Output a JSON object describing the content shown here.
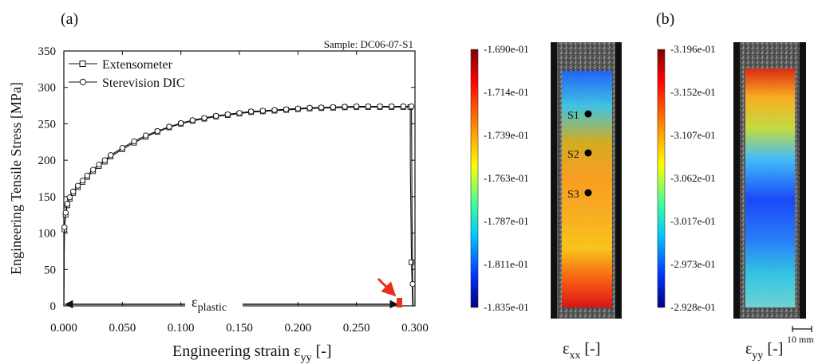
{
  "panels": {
    "a_label": "(a)",
    "b_label": "(b)"
  },
  "stress_strain": {
    "type": "line",
    "annotation": "Sample: DC06-07-S1",
    "xlabel_main": "Engineering strain ε",
    "xlabel_sub": "yy",
    "xlabel_tail": " [-]",
    "ylabel": "Engineering Tensile Stress [MPa]",
    "xlim": [
      0.0,
      0.3
    ],
    "ylim": [
      0,
      350
    ],
    "xticks": [
      0.0,
      0.05,
      0.1,
      0.15,
      0.2,
      0.25,
      0.3
    ],
    "xtick_labels": [
      "0.000",
      "0.050",
      "0.100",
      "0.150",
      "0.200",
      "0.250",
      "0.300"
    ],
    "yticks": [
      0,
      50,
      100,
      150,
      200,
      250,
      300,
      350
    ],
    "ytick_labels": [
      "0",
      "50",
      "100",
      "150",
      "200",
      "250",
      "300",
      "350"
    ],
    "legend_position": "top-left",
    "series": [
      {
        "name": "Extensometer",
        "marker": "square",
        "x": [
          0.0,
          0.0005,
          0.0015,
          0.003,
          0.005,
          0.008,
          0.012,
          0.016,
          0.02,
          0.025,
          0.03,
          0.035,
          0.04,
          0.05,
          0.06,
          0.07,
          0.08,
          0.09,
          0.1,
          0.11,
          0.12,
          0.13,
          0.14,
          0.15,
          0.16,
          0.17,
          0.18,
          0.19,
          0.2,
          0.21,
          0.22,
          0.23,
          0.24,
          0.25,
          0.26,
          0.27,
          0.28,
          0.29,
          0.296,
          0.296,
          0.297,
          0.298
        ],
        "y": [
          0,
          105,
          125,
          138,
          147,
          155,
          163,
          170,
          177,
          185,
          192,
          198,
          205,
          215,
          224,
          232,
          239,
          245,
          250,
          254,
          257,
          260,
          262,
          264,
          266,
          267,
          268,
          269,
          270,
          271,
          271.5,
          272,
          272.5,
          273,
          273,
          273,
          273,
          273,
          273,
          200,
          60,
          0
        ]
      },
      {
        "name": "Sterevision DIC",
        "marker": "circle",
        "x": [
          0.0,
          0.0005,
          0.0015,
          0.003,
          0.005,
          0.008,
          0.012,
          0.016,
          0.02,
          0.025,
          0.03,
          0.035,
          0.04,
          0.05,
          0.06,
          0.07,
          0.08,
          0.09,
          0.1,
          0.11,
          0.12,
          0.13,
          0.14,
          0.15,
          0.16,
          0.17,
          0.18,
          0.19,
          0.2,
          0.21,
          0.22,
          0.23,
          0.24,
          0.25,
          0.26,
          0.27,
          0.28,
          0.29,
          0.297,
          0.2975,
          0.298,
          0.2985
        ],
        "y": [
          0,
          108,
          128,
          140,
          149,
          157,
          165,
          172,
          179,
          187,
          194,
          200,
          207,
          217,
          226,
          234,
          240,
          246,
          251,
          255,
          258,
          261,
          263,
          265,
          267,
          268,
          269,
          270,
          271,
          272,
          272.5,
          273,
          273.5,
          274,
          274,
          274,
          274,
          274,
          274,
          125,
          30,
          0
        ]
      }
    ],
    "plastic_label_main": "ε",
    "plastic_label_sub": "plastic",
    "plastic_strain": 0.298,
    "arrow_color": "#e8301c"
  },
  "maps": [
    {
      "title_main": "ε",
      "title_sub": "xx",
      "title_tail": " [-]",
      "colorbar_labels": [
        "-1.690e-01",
        "-1.714e-01",
        "-1.739e-01",
        "-1.763e-01",
        "-1.787e-01",
        "-1.811e-01",
        "-1.835e-01"
      ],
      "points": [
        {
          "label": "S1"
        },
        {
          "label": "S2"
        },
        {
          "label": "S3"
        }
      ]
    },
    {
      "title_main": "ε",
      "title_sub": "yy",
      "title_tail": " [-]",
      "colorbar_labels": [
        "-3.196e-01",
        "-3.152e-01",
        "-3.107e-01",
        "-3.062e-01",
        "-3.017e-01",
        "-2.973e-01",
        "-2.928e-01"
      ],
      "scale_label": "10 mm"
    }
  ],
  "colors": {
    "jet_top": "#8b0000",
    "jet_bottom": "#00008b"
  }
}
